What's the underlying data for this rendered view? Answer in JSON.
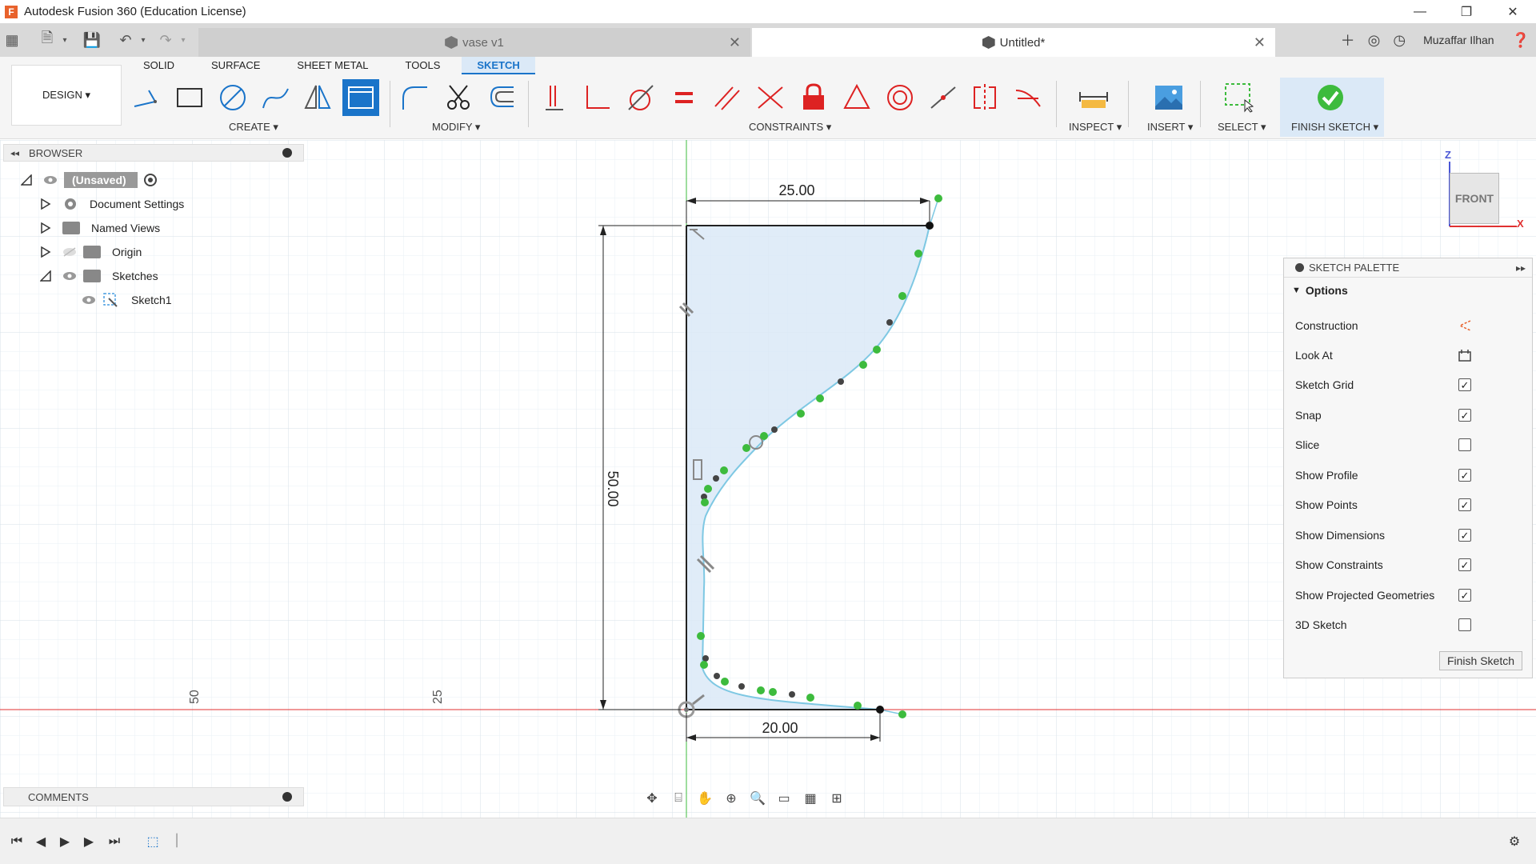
{
  "window": {
    "title": "Autodesk Fusion 360 (Education License)"
  },
  "tabs": [
    {
      "label": "vase v1"
    },
    {
      "label": "Untitled*"
    }
  ],
  "user": {
    "name": "Muzaffar Ilhan"
  },
  "workspace": {
    "design_label": "DESIGN ▾"
  },
  "toolbar_tabs": [
    "SOLID",
    "SURFACE",
    "SHEET METAL",
    "TOOLS",
    "SKETCH"
  ],
  "groups": {
    "create": "CREATE ▾",
    "modify": "MODIFY ▾",
    "constraints": "CONSTRAINTS ▾",
    "inspect": "INSPECT ▾",
    "insert": "INSERT ▾",
    "select": "SELECT ▾",
    "finish_sketch": "FINISH SKETCH ▾"
  },
  "browser": {
    "title": "BROWSER",
    "root": "(Unsaved)",
    "items": [
      "Document Settings",
      "Named Views",
      "Origin",
      "Sketches",
      "Sketch1"
    ]
  },
  "canvas": {
    "dimensions": {
      "top_width": "25.00",
      "height": "50.00",
      "bottom_width": "20.00"
    },
    "grid_labels": {
      "label_50": "50",
      "label_25": "25"
    },
    "viewcube_face": "FRONT",
    "axis_z": "Z",
    "axis_x": "X"
  },
  "palette": {
    "title": "SKETCH PALETTE",
    "section": "Options",
    "rows": [
      {
        "label": "Construction",
        "type": "icon"
      },
      {
        "label": "Look At",
        "type": "icon"
      },
      {
        "label": "Sketch Grid",
        "type": "checkbox",
        "checked": true
      },
      {
        "label": "Snap",
        "type": "checkbox",
        "checked": true
      },
      {
        "label": "Slice",
        "type": "checkbox",
        "checked": false
      },
      {
        "label": "Show Profile",
        "type": "checkbox",
        "checked": true
      },
      {
        "label": "Show Points",
        "type": "checkbox",
        "checked": true
      },
      {
        "label": "Show Dimensions",
        "type": "checkbox",
        "checked": true
      },
      {
        "label": "Show Constraints",
        "type": "checkbox",
        "checked": true
      },
      {
        "label": "Show Projected Geometries",
        "type": "checkbox",
        "checked": true
      },
      {
        "label": "3D Sketch",
        "type": "checkbox",
        "checked": false
      }
    ],
    "finish_button": "Finish Sketch"
  },
  "comments": {
    "title": "COMMENTS"
  },
  "colors": {
    "accent": "#1a74c9",
    "profile_fill": "#dbe9f7",
    "spline": "#7ec8e3",
    "point_green": "#3dbb3d",
    "axis_red": "#e03030",
    "axis_green": "#3dbb3d"
  }
}
